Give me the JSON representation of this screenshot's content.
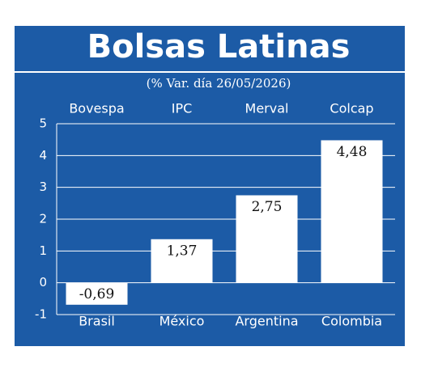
{
  "chart_data": {
    "type": "bar",
    "title": "Bolsas Latinas",
    "subtitle": "(% Var. día 26/05/2026)",
    "index_names": [
      "Bovespa",
      "IPC",
      "Merval",
      "Colcap"
    ],
    "categories": [
      "Brasil",
      "México",
      "Argentina",
      "Colombia"
    ],
    "values": [
      -0.69,
      1.37,
      2.75,
      4.48
    ],
    "value_labels": [
      "-0,69",
      "1,37",
      "2,75",
      "4,48"
    ],
    "color": "#ffffff",
    "ylim": [
      -1,
      5
    ],
    "yticks": [
      -1,
      0,
      1,
      2,
      3,
      4,
      5
    ],
    "grid": true
  }
}
